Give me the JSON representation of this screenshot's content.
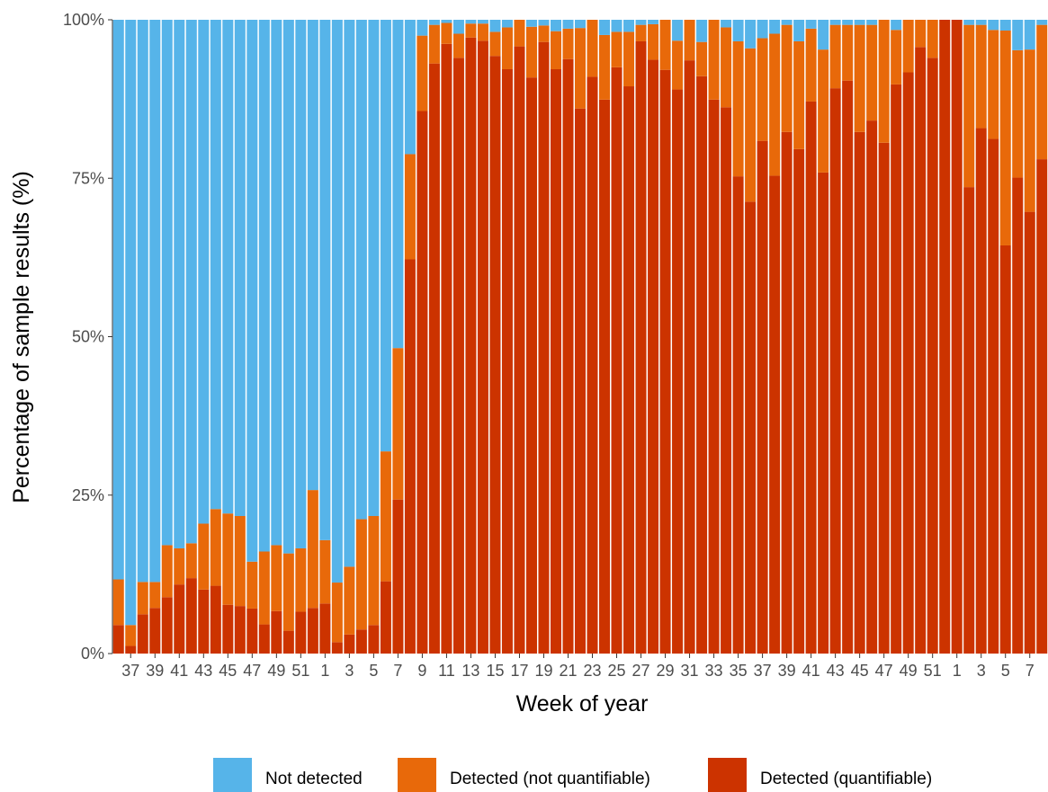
{
  "chart_data": {
    "type": "bar",
    "stacked": true,
    "normalized": true,
    "xlabel": "Week of year",
    "ylabel": "Percentage of sample results (%)",
    "ylim": [
      0,
      100
    ],
    "y_ticks": [
      "0%",
      "25%",
      "50%",
      "75%",
      "100%"
    ],
    "grid": false,
    "legend_position": "bottom",
    "categories": [
      "36",
      "37",
      "38",
      "39",
      "40",
      "41",
      "42",
      "43",
      "44",
      "45",
      "46",
      "47",
      "48",
      "49",
      "50",
      "51",
      "52",
      "1",
      "2",
      "3",
      "4",
      "5",
      "6",
      "7",
      "8",
      "9",
      "10",
      "11",
      "12",
      "13",
      "14",
      "15",
      "16",
      "17",
      "18",
      "19",
      "20",
      "21",
      "22",
      "23",
      "24",
      "25",
      "26",
      "27",
      "28",
      "29",
      "30",
      "31",
      "32",
      "33",
      "34",
      "35",
      "36",
      "37",
      "38",
      "39",
      "40",
      "41",
      "42",
      "43",
      "44",
      "45",
      "46",
      "47",
      "48",
      "49",
      "50",
      "51",
      "52",
      "1",
      "2",
      "3",
      "4",
      "5",
      "6",
      "7",
      "8"
    ],
    "tick_labels": [
      {
        "index": 1,
        "label": "37"
      },
      {
        "index": 3,
        "label": "39"
      },
      {
        "index": 5,
        "label": "41"
      },
      {
        "index": 7,
        "label": "43"
      },
      {
        "index": 9,
        "label": "45"
      },
      {
        "index": 11,
        "label": "47"
      },
      {
        "index": 13,
        "label": "49"
      },
      {
        "index": 15,
        "label": "51"
      },
      {
        "index": 17,
        "label": "1"
      },
      {
        "index": 19,
        "label": "3"
      },
      {
        "index": 21,
        "label": "5"
      },
      {
        "index": 23,
        "label": "7"
      },
      {
        "index": 25,
        "label": "9"
      },
      {
        "index": 27,
        "label": "11"
      },
      {
        "index": 29,
        "label": "13"
      },
      {
        "index": 31,
        "label": "15"
      },
      {
        "index": 33,
        "label": "17"
      },
      {
        "index": 35,
        "label": "19"
      },
      {
        "index": 37,
        "label": "21"
      },
      {
        "index": 39,
        "label": "23"
      },
      {
        "index": 41,
        "label": "25"
      },
      {
        "index": 43,
        "label": "27"
      },
      {
        "index": 45,
        "label": "29"
      },
      {
        "index": 47,
        "label": "31"
      },
      {
        "index": 49,
        "label": "33"
      },
      {
        "index": 51,
        "label": "35"
      },
      {
        "index": 53,
        "label": "37"
      },
      {
        "index": 55,
        "label": "39"
      },
      {
        "index": 57,
        "label": "41"
      },
      {
        "index": 59,
        "label": "43"
      },
      {
        "index": 61,
        "label": "45"
      },
      {
        "index": 63,
        "label": "47"
      },
      {
        "index": 65,
        "label": "49"
      },
      {
        "index": 67,
        "label": "51"
      },
      {
        "index": 69,
        "label": "1"
      },
      {
        "index": 71,
        "label": "3"
      },
      {
        "index": 73,
        "label": "5"
      },
      {
        "index": 75,
        "label": "7"
      }
    ],
    "series": [
      {
        "name": "Detected (quantifiable)",
        "color": "#CC3300",
        "values": [
          4.5,
          1.2,
          6.2,
          7.2,
          8.9,
          10.9,
          11.9,
          10.1,
          10.7,
          7.7,
          7.5,
          7.1,
          4.6,
          6.7,
          3.6,
          6.6,
          7.2,
          7.9,
          1.8,
          3.0,
          3.8,
          4.5,
          11.4,
          24.3,
          62.2,
          85.6,
          93.1,
          96.2,
          94.0,
          97.2,
          96.7,
          94.3,
          92.2,
          95.8,
          90.9,
          96.5,
          92.2,
          93.8,
          86.0,
          91.0,
          87.4,
          92.5,
          89.5,
          96.6,
          93.7,
          92.1,
          89.0,
          93.6,
          91.1,
          87.4,
          86.2,
          75.3,
          71.3,
          80.9,
          75.4,
          82.3,
          79.6,
          87.1,
          75.9,
          89.2,
          90.4,
          82.3,
          84.1,
          80.6,
          89.8,
          91.7,
          95.7,
          94.0,
          100.0,
          100.0,
          73.6,
          82.9,
          81.2,
          64.4,
          75.1,
          69.7,
          78.0
        ]
      },
      {
        "name": "Detected (not quantifiable)",
        "color": "#E8690A",
        "values": [
          7.2,
          3.3,
          5.1,
          4.1,
          8.2,
          5.7,
          5.5,
          10.4,
          12.1,
          14.4,
          14.2,
          7.4,
          11.5,
          10.4,
          12.2,
          10.0,
          18.6,
          10.0,
          9.4,
          10.7,
          17.4,
          17.2,
          20.5,
          23.9,
          16.6,
          11.9,
          6.1,
          3.3,
          3.8,
          2.2,
          2.7,
          3.8,
          6.6,
          4.2,
          8.0,
          2.6,
          6.0,
          4.8,
          12.7,
          9.0,
          10.2,
          5.6,
          8.6,
          2.6,
          5.6,
          7.9,
          7.7,
          6.4,
          5.4,
          12.6,
          12.6,
          21.3,
          24.2,
          16.2,
          22.4,
          16.9,
          17.0,
          11.5,
          19.4,
          10.0,
          8.8,
          16.9,
          15.1,
          19.4,
          8.6,
          8.3,
          4.3,
          6.0,
          0.0,
          0.0,
          25.6,
          16.3,
          17.2,
          33.9,
          20.1,
          25.6,
          21.2
        ]
      },
      {
        "name": "Not detected",
        "color": "#56B4E9",
        "values": [
          88.3,
          95.5,
          88.7,
          88.7,
          82.9,
          83.4,
          82.6,
          79.5,
          77.2,
          77.9,
          78.3,
          85.5,
          83.9,
          82.9,
          84.2,
          83.4,
          74.2,
          82.1,
          88.8,
          86.3,
          78.8,
          78.3,
          68.1,
          51.8,
          21.2,
          2.5,
          0.8,
          0.5,
          2.2,
          0.6,
          0.6,
          1.9,
          1.2,
          0.0,
          1.1,
          0.9,
          1.8,
          1.4,
          1.3,
          0.0,
          2.4,
          1.9,
          1.9,
          0.8,
          0.7,
          0.0,
          3.3,
          0.0,
          3.5,
          0.0,
          1.2,
          3.4,
          4.5,
          2.9,
          2.2,
          0.8,
          3.4,
          1.4,
          4.7,
          0.8,
          0.8,
          0.8,
          0.8,
          0.0,
          1.6,
          0.0,
          0.0,
          0.0,
          0.0,
          0.0,
          0.8,
          0.8,
          1.6,
          1.7,
          4.8,
          4.7,
          0.8
        ]
      }
    ]
  },
  "legend": {
    "items": [
      {
        "label": "Not detected",
        "color": "#56B4E9"
      },
      {
        "label": "Detected (not quantifiable)",
        "color": "#E8690A"
      },
      {
        "label": "Detected (quantifiable)",
        "color": "#CC3300"
      }
    ]
  }
}
